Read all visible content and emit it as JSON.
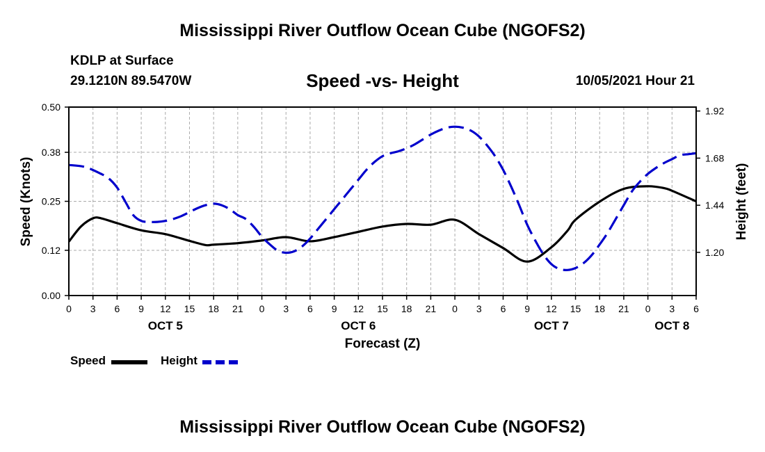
{
  "header": {
    "title": "Mississippi River Outflow Ocean Cube (NGOFS2)",
    "station": "KDLP at Surface",
    "coords": "29.1210N  89.5470W",
    "subtitle": "Speed -vs- Height",
    "datetime": "10/05/2021 Hour 21"
  },
  "footer": {
    "title": "Mississippi River Outflow Ocean Cube (NGOFS2)"
  },
  "legend": {
    "speed_label": "Speed",
    "height_label": "Height"
  },
  "colors": {
    "speed": "#000000",
    "height": "#0000cc",
    "grid": "#aaaaaa"
  },
  "chart_data": {
    "type": "line",
    "title": "Speed -vs- Height",
    "xlabel": "Forecast (Z)",
    "ylabel": "Speed (Knots)",
    "y2label": "Height (feet)",
    "xlim": [
      0,
      78
    ],
    "ylim": [
      0,
      0.5
    ],
    "y2lim": [
      0.98,
      1.94
    ],
    "grid": true,
    "x_ticks": [
      0,
      3,
      6,
      9,
      12,
      15,
      18,
      21,
      24,
      27,
      30,
      33,
      36,
      39,
      42,
      45,
      48,
      51,
      54,
      57,
      60,
      63,
      66,
      69,
      72,
      75,
      78
    ],
    "x_tick_labels": [
      "0",
      "3",
      "6",
      "9",
      "12",
      "15",
      "18",
      "21",
      "0",
      "3",
      "6",
      "9",
      "12",
      "15",
      "18",
      "21",
      "0",
      "3",
      "6",
      "9",
      "12",
      "15",
      "18",
      "21",
      "0",
      "3",
      "6"
    ],
    "day_labels": [
      {
        "hour": 12,
        "label": "OCT 5"
      },
      {
        "hour": 36,
        "label": "OCT 6"
      },
      {
        "hour": 60,
        "label": "OCT 7"
      },
      {
        "hour": 75,
        "label": "OCT 8"
      }
    ],
    "y_ticks": [
      0.0,
      0.12,
      0.25,
      0.38,
      0.5
    ],
    "y_tick_labels": [
      "0.00",
      "0.12",
      "0.25",
      "0.38",
      "0.50"
    ],
    "y2_ticks": [
      1.2,
      1.44,
      1.68,
      1.92
    ],
    "y2_tick_labels": [
      "1.20",
      "1.44",
      "1.68",
      "1.92"
    ],
    "series": [
      {
        "name": "Speed",
        "axis": "left",
        "style": "solid",
        "x": [
          0,
          1.5,
          3,
          4,
          6,
          9,
          12,
          15,
          17,
          18,
          21,
          24,
          27,
          30,
          33,
          36,
          39,
          42,
          45,
          48,
          51,
          54,
          57,
          60,
          62,
          63,
          66,
          69,
          72,
          74,
          75,
          78
        ],
        "values": [
          0.143,
          0.183,
          0.205,
          0.205,
          0.192,
          0.173,
          0.163,
          0.145,
          0.134,
          0.135,
          0.139,
          0.146,
          0.155,
          0.144,
          0.155,
          0.169,
          0.183,
          0.19,
          0.188,
          0.201,
          0.163,
          0.126,
          0.09,
          0.128,
          0.172,
          0.201,
          0.249,
          0.283,
          0.29,
          0.285,
          0.278,
          0.25
        ]
      },
      {
        "name": "Height",
        "axis": "right",
        "style": "dashed",
        "x": [
          0,
          2,
          4,
          5,
          6,
          7,
          8,
          9,
          10,
          11,
          12,
          13,
          14,
          15,
          16,
          17,
          18,
          19,
          20,
          21,
          22,
          23,
          24,
          25,
          26,
          27,
          28,
          29,
          30,
          31,
          32,
          33,
          34,
          35,
          36,
          37,
          38,
          39,
          40,
          41,
          42,
          43,
          44,
          45,
          46,
          47,
          48,
          49,
          50,
          51,
          52,
          53,
          54,
          55,
          56,
          57,
          58,
          59,
          60,
          61,
          62,
          63,
          64,
          65,
          66,
          67,
          68,
          69,
          70,
          71,
          72,
          73,
          74,
          75,
          76,
          77,
          78
        ],
        "values": [
          1.645,
          1.635,
          1.6,
          1.575,
          1.53,
          1.46,
          1.39,
          1.36,
          1.355,
          1.355,
          1.36,
          1.37,
          1.385,
          1.405,
          1.425,
          1.44,
          1.448,
          1.44,
          1.42,
          1.39,
          1.37,
          1.33,
          1.28,
          1.24,
          1.208,
          1.198,
          1.205,
          1.23,
          1.27,
          1.32,
          1.37,
          1.42,
          1.47,
          1.52,
          1.57,
          1.62,
          1.66,
          1.69,
          1.705,
          1.715,
          1.73,
          1.75,
          1.775,
          1.8,
          1.82,
          1.835,
          1.84,
          1.835,
          1.82,
          1.79,
          1.745,
          1.69,
          1.62,
          1.535,
          1.44,
          1.34,
          1.26,
          1.19,
          1.14,
          1.115,
          1.11,
          1.12,
          1.145,
          1.185,
          1.24,
          1.3,
          1.37,
          1.44,
          1.51,
          1.56,
          1.6,
          1.63,
          1.655,
          1.675,
          1.695,
          1.7,
          1.705
        ]
      }
    ]
  }
}
